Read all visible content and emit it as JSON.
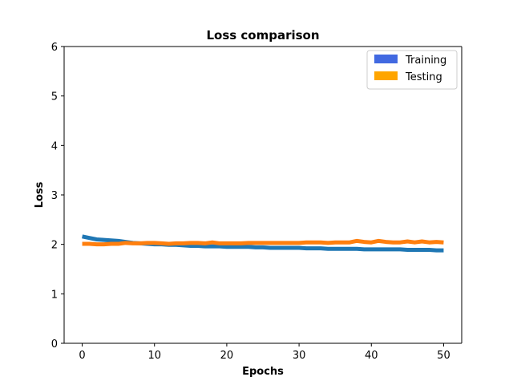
{
  "chart_data": {
    "type": "line",
    "title": "Loss comparison",
    "xlabel": "Epochs",
    "ylabel": "Loss",
    "xlim": [
      -2.5,
      52.5
    ],
    "ylim": [
      0,
      6
    ],
    "xticks": [
      0,
      10,
      20,
      30,
      40,
      50
    ],
    "yticks": [
      0,
      1,
      2,
      3,
      4,
      5,
      6
    ],
    "grid": false,
    "legend": {
      "position": "top-right",
      "entries": [
        {
          "label": "Training",
          "color": "#4169E1"
        },
        {
          "label": "Testing",
          "color": "#FFA500"
        }
      ]
    },
    "x": [
      0,
      1,
      2,
      3,
      4,
      5,
      6,
      7,
      8,
      9,
      10,
      11,
      12,
      13,
      14,
      15,
      16,
      17,
      18,
      19,
      20,
      21,
      22,
      23,
      24,
      25,
      26,
      27,
      28,
      29,
      30,
      31,
      32,
      33,
      34,
      35,
      36,
      37,
      38,
      39,
      40,
      41,
      42,
      43,
      44,
      45,
      46,
      47,
      48,
      49,
      50
    ],
    "series": [
      {
        "color": "#1f77b4",
        "values": [
          2.16,
          2.13,
          2.1,
          2.09,
          2.08,
          2.07,
          2.05,
          2.03,
          2.02,
          2.01,
          2.0,
          2.0,
          1.99,
          1.99,
          1.98,
          1.97,
          1.97,
          1.96,
          1.96,
          1.96,
          1.95,
          1.95,
          1.95,
          1.95,
          1.94,
          1.94,
          1.93,
          1.93,
          1.93,
          1.93,
          1.93,
          1.92,
          1.92,
          1.92,
          1.91,
          1.91,
          1.91,
          1.91,
          1.91,
          1.9,
          1.9,
          1.9,
          1.9,
          1.9,
          1.9,
          1.89,
          1.89,
          1.89,
          1.89,
          1.88,
          1.88
        ]
      },
      {
        "color": "#ff7f0e",
        "values": [
          2.01,
          2.01,
          2.0,
          2.0,
          2.01,
          2.01,
          2.03,
          2.02,
          2.02,
          2.03,
          2.03,
          2.02,
          2.01,
          2.02,
          2.02,
          2.03,
          2.03,
          2.02,
          2.04,
          2.02,
          2.02,
          2.02,
          2.02,
          2.03,
          2.03,
          2.03,
          2.03,
          2.03,
          2.03,
          2.03,
          2.03,
          2.04,
          2.04,
          2.04,
          2.03,
          2.04,
          2.04,
          2.04,
          2.07,
          2.05,
          2.04,
          2.07,
          2.05,
          2.04,
          2.04,
          2.06,
          2.04,
          2.06,
          2.04,
          2.05,
          2.04
        ]
      }
    ]
  }
}
